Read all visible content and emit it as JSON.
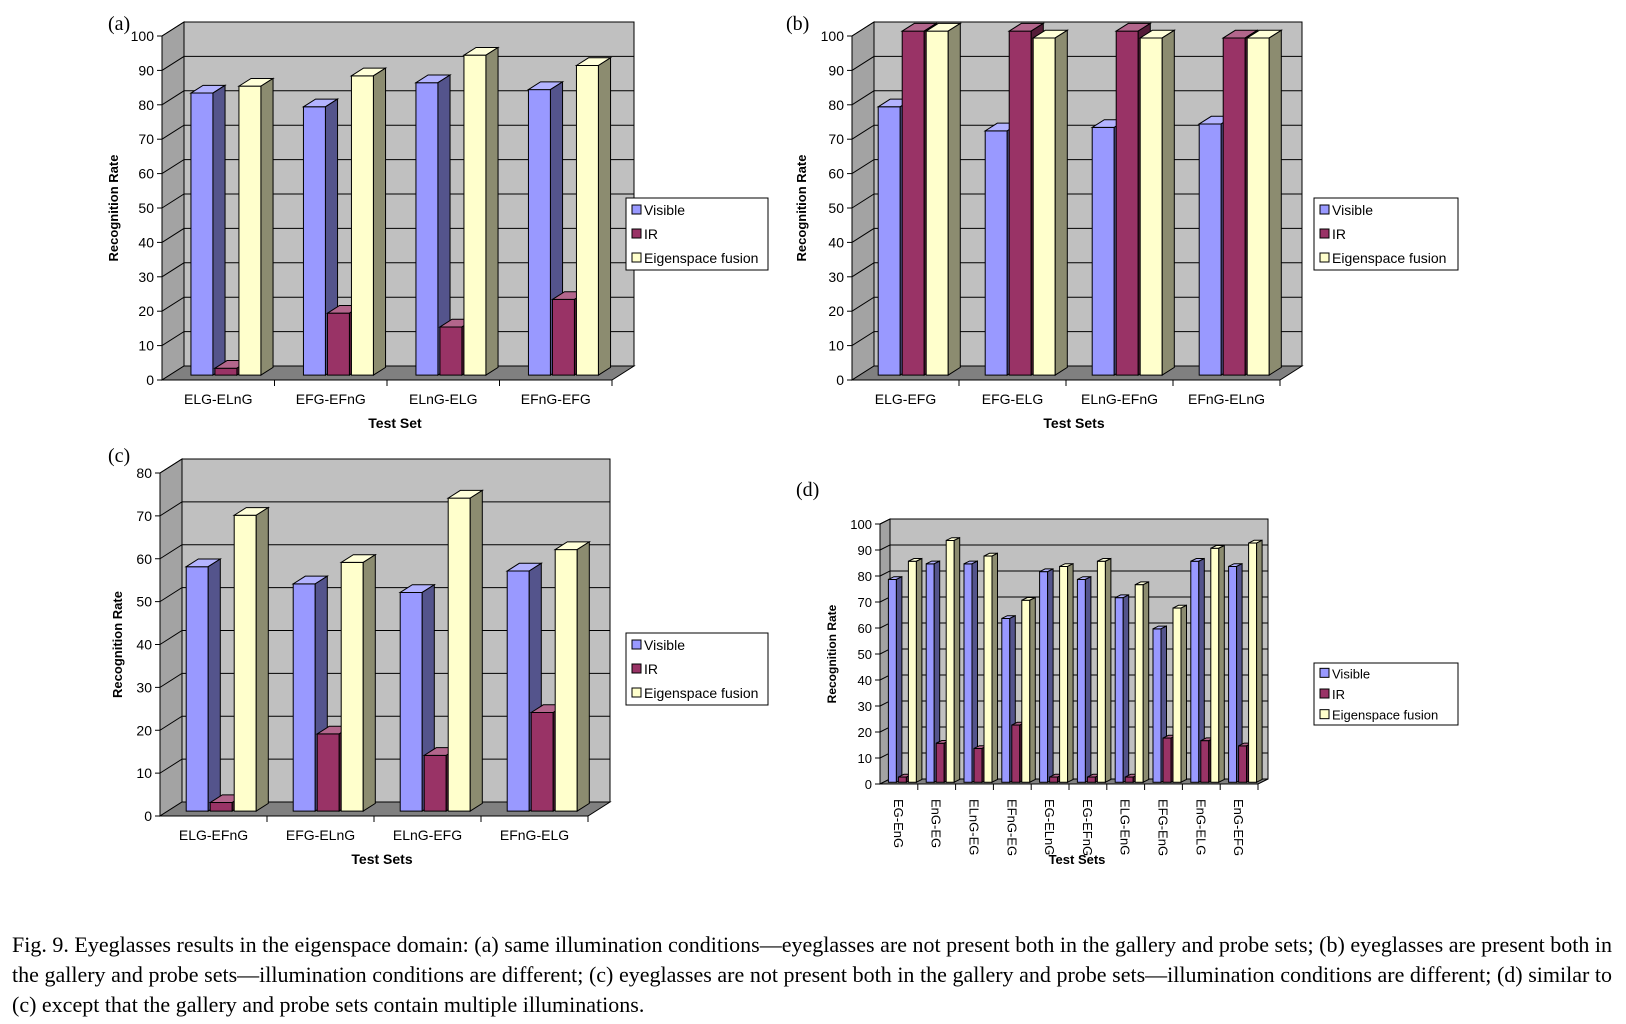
{
  "figure": {
    "caption": "Fig. 9. Eyeglasses results in the eigenspace domain: (a) same illumination conditions—eyeglasses are not present both in the gallery and probe sets; (b) eyeglasses are present both in the gallery and probe sets—illumination conditions are different; (c) eyeglasses are not present both in the gallery and probe sets—illumination conditions are different; (d) similar to (c) except that the gallery and probe sets contain multiple illuminations."
  },
  "colors": {
    "visible": "#9999ff",
    "ir": "#993366",
    "fusion": "#ffffcc",
    "plot_back": "#c0c0c0",
    "plot_floor": "#808080"
  },
  "chart_data": [
    {
      "panel": "(a)",
      "type": "bar",
      "categories": [
        "ELG-ELnG",
        "EFG-EFnG",
        "ELnG-ELG",
        "EFnG-EFG"
      ],
      "series": [
        {
          "name": "Visible",
          "values": [
            82,
            78,
            85,
            83
          ]
        },
        {
          "name": "IR",
          "values": [
            2,
            18,
            14,
            22
          ]
        },
        {
          "name": "Eigenspace fusion",
          "values": [
            84,
            87,
            93,
            90
          ]
        }
      ],
      "xlabel": "Test Set",
      "ylabel": "Recognition Rate",
      "ylim": [
        0,
        100
      ],
      "yticks": [
        0,
        10,
        20,
        30,
        40,
        50,
        60,
        70,
        80,
        90,
        100
      ],
      "legend": "right",
      "grid": true
    },
    {
      "panel": "(b)",
      "type": "bar",
      "categories": [
        "ELG-EFG",
        "EFG-ELG",
        "ELnG-EFnG",
        "EFnG-ELnG"
      ],
      "series": [
        {
          "name": "Visible",
          "values": [
            78,
            71,
            72,
            73
          ]
        },
        {
          "name": "IR",
          "values": [
            100,
            100,
            100,
            98
          ]
        },
        {
          "name": "Eigenspace fusion",
          "values": [
            100,
            98,
            98,
            98
          ]
        }
      ],
      "xlabel": "Test Sets",
      "ylabel": "Recognition Rate",
      "ylim": [
        0,
        100
      ],
      "yticks": [
        0,
        10,
        20,
        30,
        40,
        50,
        60,
        70,
        80,
        90,
        100
      ],
      "legend": "right",
      "grid": true
    },
    {
      "panel": "(c)",
      "type": "bar",
      "categories": [
        "ELG-EFnG",
        "EFG-ELnG",
        "ELnG-EFG",
        "EFnG-ELG"
      ],
      "series": [
        {
          "name": "Visible",
          "values": [
            57,
            53,
            51,
            56
          ]
        },
        {
          "name": "IR",
          "values": [
            2,
            18,
            13,
            23
          ]
        },
        {
          "name": "Eigenspace fusion",
          "values": [
            69,
            58,
            73,
            61
          ]
        }
      ],
      "xlabel": "Test Sets",
      "ylabel": "Recognition Rate",
      "ylim": [
        0,
        80
      ],
      "yticks": [
        0,
        10,
        20,
        30,
        40,
        50,
        60,
        70,
        80
      ],
      "legend": "right",
      "grid": true
    },
    {
      "panel": "(d)",
      "type": "bar",
      "categories": [
        "EG-EnG",
        "EnG-EG",
        "ELnG-EG",
        "EFnG-EG",
        "EG-ELnG",
        "EG-EFnG",
        "ELG-EnG",
        "EFG-EnG",
        "EnG-ELG",
        "EnG-EFG"
      ],
      "series": [
        {
          "name": "Visible",
          "values": [
            78,
            84,
            84,
            63,
            81,
            78,
            71,
            59,
            85,
            83
          ]
        },
        {
          "name": "IR",
          "values": [
            2,
            15,
            13,
            22,
            2,
            2,
            2,
            17,
            16,
            14
          ]
        },
        {
          "name": "Eigenspace fusion",
          "values": [
            85,
            93,
            87,
            70,
            83,
            85,
            76,
            67,
            90,
            92
          ]
        }
      ],
      "xlabel": "Test Sets",
      "ylabel": "Recognition Rate",
      "ylim": [
        0,
        100
      ],
      "yticks": [
        0,
        10,
        20,
        30,
        40,
        50,
        60,
        70,
        80,
        90,
        100
      ],
      "legend": "right",
      "grid": true
    }
  ]
}
